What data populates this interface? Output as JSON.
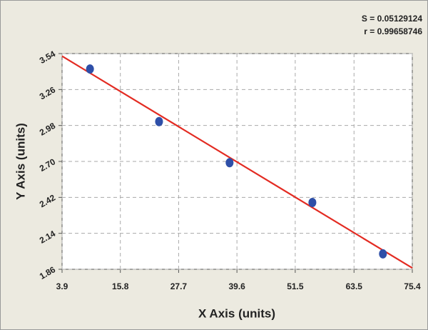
{
  "chart_data": {
    "type": "scatter",
    "x_label": "X Axis (units)",
    "y_label": "Y Axis (units)",
    "annotations": [
      "S = 0.05129124",
      "r = 0.99658746"
    ],
    "series": [
      {
        "color": "#2e4fa8",
        "x": [
          9.6,
          23.7,
          38.1,
          55.0,
          69.4
        ],
        "values": [
          3.42,
          3.01,
          2.69,
          2.38,
          1.98
        ]
      }
    ],
    "fit_line": {
      "color": "#e32b22",
      "x": [
        3.9,
        75.4
      ],
      "values": [
        3.52,
        1.87
      ]
    },
    "xlim": [
      3.9,
      75.4
    ],
    "xticks": [
      3.9,
      15.8,
      27.7,
      39.6,
      51.5,
      63.5,
      75.4
    ],
    "ylim": [
      1.86,
      3.54
    ],
    "yticks": [
      1.86,
      2.14,
      2.42,
      {
        "value": 2.7,
        "label": "2.70"
      },
      2.98,
      3.26,
      3.54
    ],
    "grid": true
  }
}
